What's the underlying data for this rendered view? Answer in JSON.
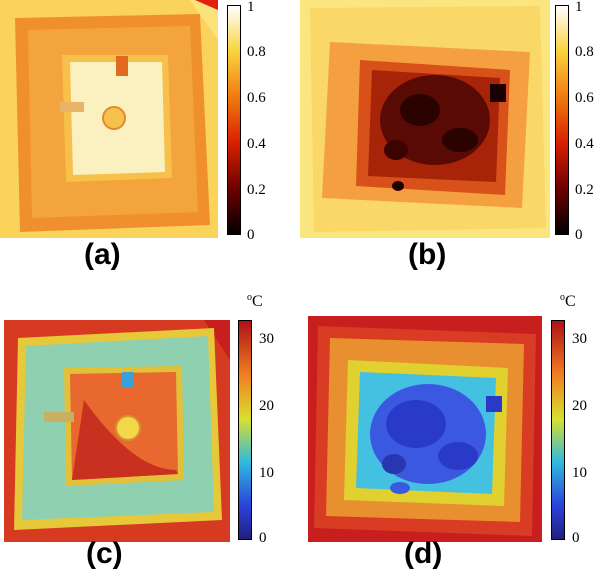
{
  "panels": [
    {
      "label": "(a)",
      "scale": "normalized",
      "ticks": [
        "1",
        "0.8",
        "0.6",
        "0.4",
        "0.2",
        "0"
      ]
    },
    {
      "label": "(b)",
      "scale": "normalized",
      "ticks": [
        "1",
        "0.8",
        "0.6",
        "0.4",
        "0.2",
        "0"
      ]
    },
    {
      "label": "(c)",
      "scale": "temperature",
      "unit_main": "C",
      "unit_sup": "o",
      "ticks": [
        "30",
        "20",
        "10",
        "0"
      ]
    },
    {
      "label": "(d)",
      "scale": "temperature",
      "unit_main": "C",
      "unit_sup": "o",
      "ticks": [
        "30",
        "20",
        "10",
        "0"
      ]
    }
  ],
  "colors": {
    "hot_dark": "#000000",
    "hot_red": "#c81400",
    "hot_orange": "#f07814",
    "hot_yellow": "#fadc3c",
    "hot_white": "#ffffff",
    "jet_blue": "#28289a",
    "jet_cyan": "#3cc8dc",
    "jet_yellow": "#e6e628",
    "jet_red": "#c8141e"
  }
}
